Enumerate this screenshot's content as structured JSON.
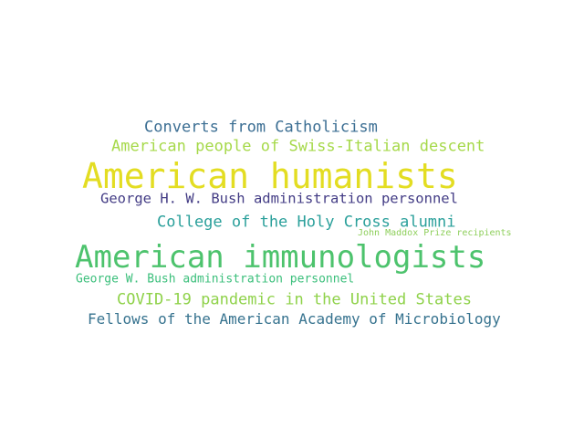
{
  "words": [
    {
      "text": "Converts from Catholicism",
      "color": "#3b6e93"
    },
    {
      "text": "American people of Swiss-Italian descent",
      "color": "#a6d94a"
    },
    {
      "text": "American humanists",
      "color": "#e3dd22"
    },
    {
      "text": "George H. W. Bush administration personnel",
      "color": "#433c85"
    },
    {
      "text": "College of the Holy Cross alumni",
      "color": "#2ba09b"
    },
    {
      "text": "John Maddox Prize recipients",
      "color": "#8ecf5b"
    },
    {
      "text": "American immunologists",
      "color": "#4dc36d"
    },
    {
      "text": "George W. Bush administration personnel",
      "color": "#3bbf7b"
    },
    {
      "text": "COVID-19 pandemic in the United States",
      "color": "#8fd24a"
    },
    {
      "text": "Fellows of the American Academy of Microbiology",
      "color": "#37738f"
    }
  ]
}
